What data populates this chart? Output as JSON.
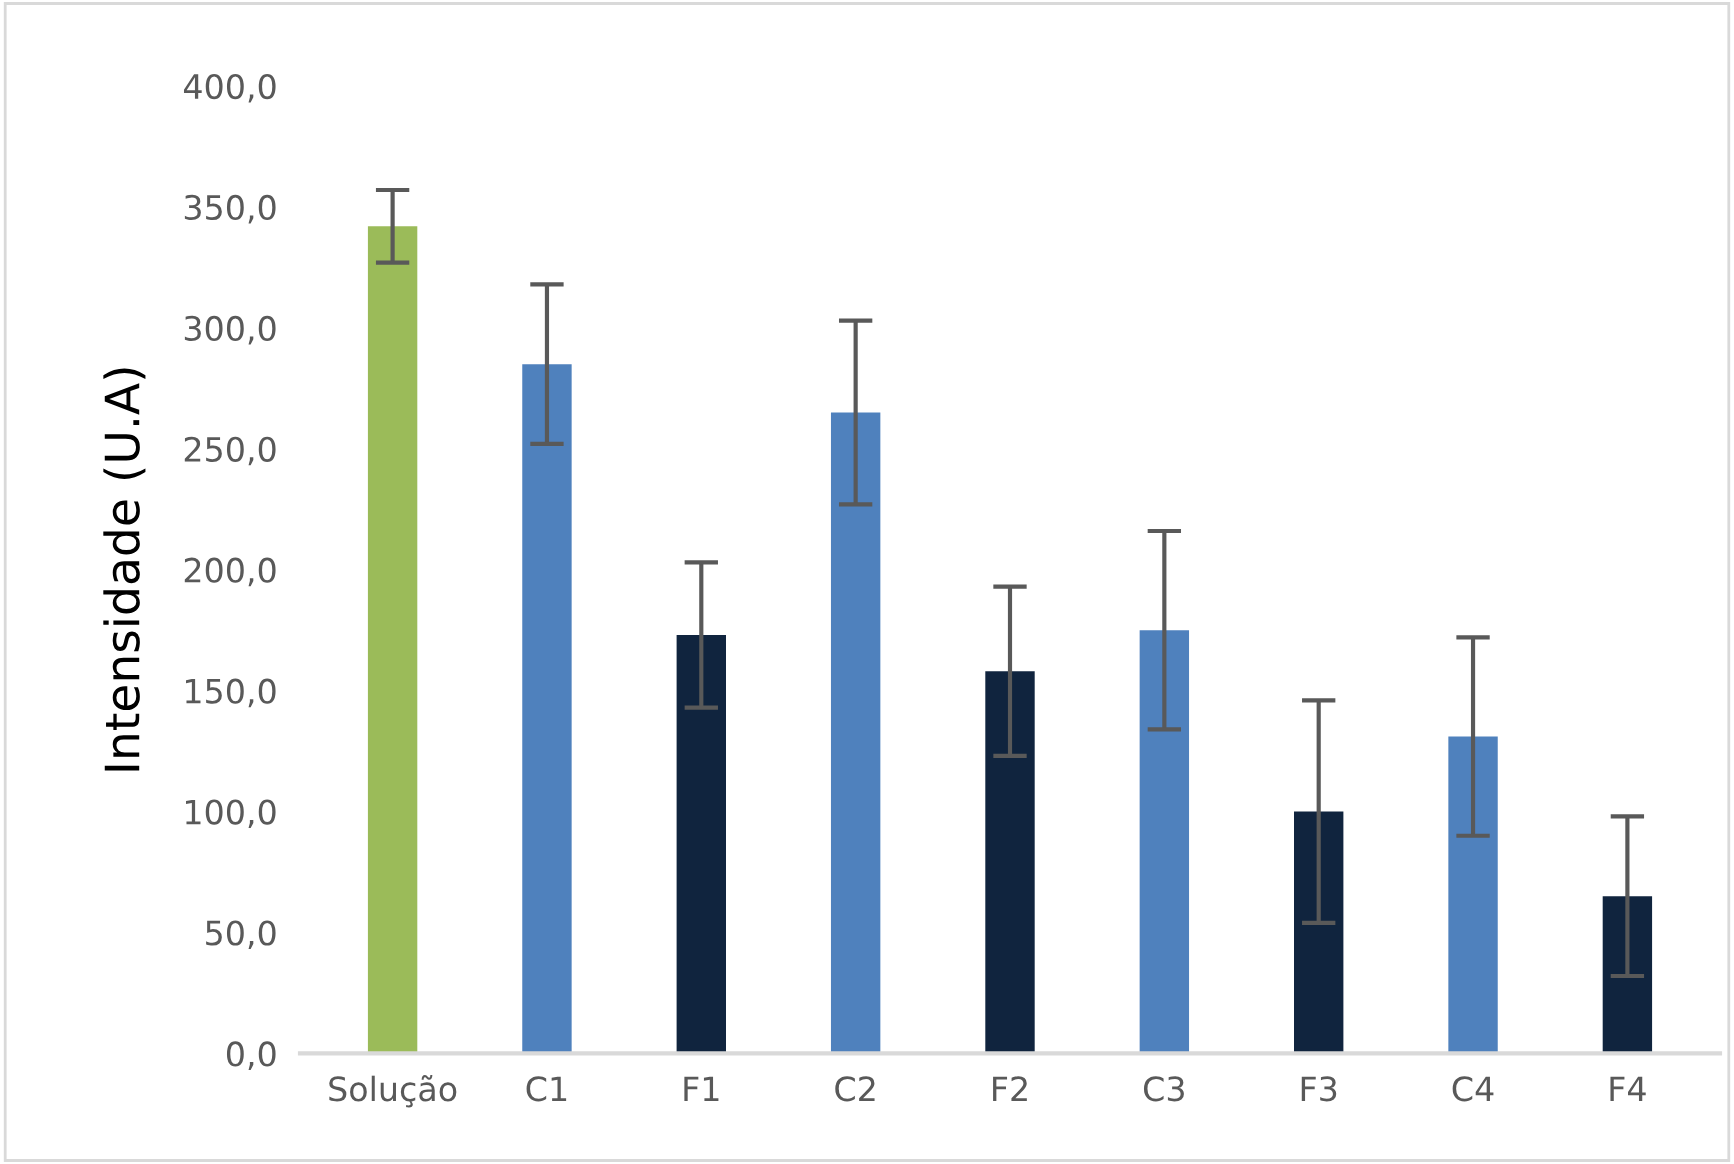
{
  "chart_data": {
    "type": "bar",
    "ylabel": "Intensidade (U.A)",
    "categories": [
      "Solução",
      "C1",
      "F1",
      "C2",
      "F2",
      "C3",
      "F3",
      "C4",
      "F4"
    ],
    "values": [
      342,
      285,
      173,
      265,
      158,
      175,
      100,
      131,
      65
    ],
    "colors": [
      "#9bbb59",
      "#4f81bd",
      "#10243e",
      "#4f81bd",
      "#10243e",
      "#4f81bd",
      "#10243e",
      "#4f81bd",
      "#10243e"
    ],
    "errors": [
      15,
      33,
      30,
      38,
      35,
      41,
      46,
      41,
      33
    ],
    "ylim": [
      0,
      400
    ],
    "yticks": [
      {
        "value": 0,
        "label": "0,0"
      },
      {
        "value": 50,
        "label": "50,0"
      },
      {
        "value": 100,
        "label": "100,0"
      },
      {
        "value": 150,
        "label": "150,0"
      },
      {
        "value": 200,
        "label": "200,0"
      },
      {
        "value": 250,
        "label": "250,0"
      },
      {
        "value": 300,
        "label": "300,0"
      },
      {
        "value": 350,
        "label": "350,0"
      },
      {
        "value": 400,
        "label": "400,0"
      }
    ],
    "grid": false
  }
}
